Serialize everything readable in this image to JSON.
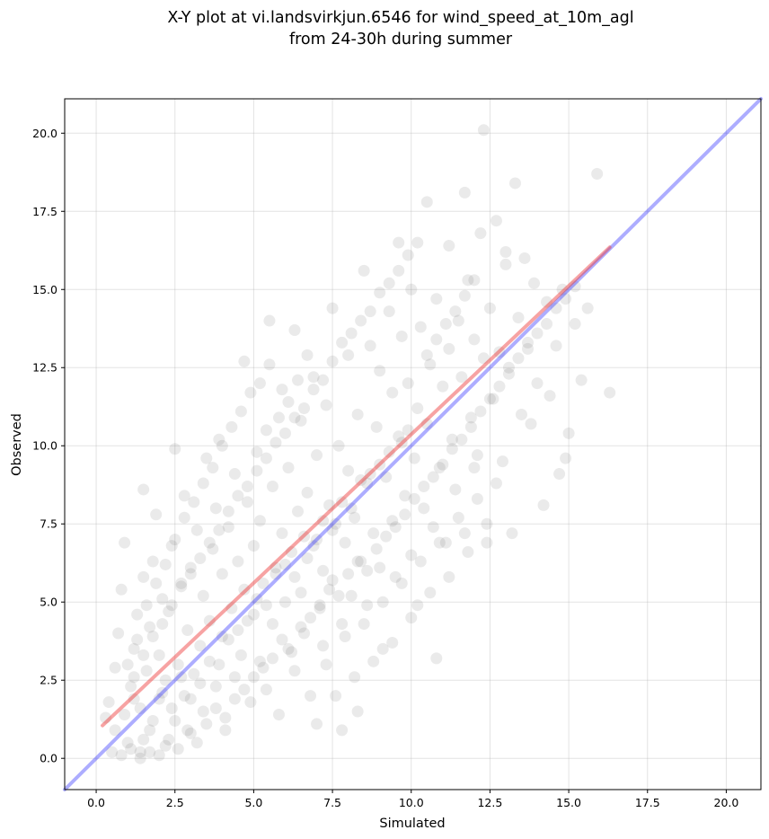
{
  "chart_data": {
    "type": "scatter",
    "title_line1": "X-Y plot at vi.landsvirkjun.6546 for wind_speed_at_10m_agl",
    "title_line2": "from 24-30h during summer",
    "xlabel": "Simulated",
    "ylabel": "Observed",
    "xlim": [
      -1.0,
      21.1
    ],
    "ylim": [
      -1.0,
      21.1
    ],
    "x_ticks": [
      0.0,
      2.5,
      5.0,
      7.5,
      10.0,
      12.5,
      15.0,
      17.5,
      20.0
    ],
    "y_ticks": [
      0.0,
      2.5,
      5.0,
      7.5,
      10.0,
      12.5,
      15.0,
      17.5,
      20.0
    ],
    "x_tick_labels": [
      "0.0",
      "2.5",
      "5.0",
      "7.5",
      "10.0",
      "12.5",
      "15.0",
      "17.5",
      "20.0"
    ],
    "y_tick_labels": [
      "0.0",
      "2.5",
      "5.0",
      "7.5",
      "10.0",
      "12.5",
      "15.0",
      "17.5",
      "20.0"
    ],
    "grid": true,
    "point_color": "#404040",
    "identity_line": {
      "x": [
        -1.0,
        21.1
      ],
      "y": [
        -1.0,
        21.1
      ],
      "color": "#3333ff"
    },
    "fit_line": {
      "x": [
        0.2,
        16.3
      ],
      "y": [
        1.05,
        16.35
      ],
      "color": "#ee3333"
    },
    "points": [
      [
        0.3,
        1.3
      ],
      [
        0.5,
        0.2
      ],
      [
        0.6,
        2.9
      ],
      [
        0.7,
        4.0
      ],
      [
        0.8,
        5.4
      ],
      [
        0.9,
        6.9
      ],
      [
        1.0,
        0.5
      ],
      [
        1.1,
        2.3
      ],
      [
        1.2,
        3.5
      ],
      [
        1.3,
        4.6
      ],
      [
        1.4,
        0.2
      ],
      [
        1.4,
        1.6
      ],
      [
        1.5,
        5.8
      ],
      [
        1.5,
        8.6
      ],
      [
        1.6,
        2.8
      ],
      [
        1.7,
        0.9
      ],
      [
        1.7,
        4.2
      ],
      [
        1.8,
        6.3
      ],
      [
        1.9,
        7.8
      ],
      [
        2.0,
        1.9
      ],
      [
        2.0,
        3.3
      ],
      [
        2.1,
        5.1
      ],
      [
        2.2,
        0.4
      ],
      [
        2.2,
        2.5
      ],
      [
        2.3,
        4.7
      ],
      [
        2.4,
        6.8
      ],
      [
        2.5,
        1.2
      ],
      [
        2.5,
        9.9
      ],
      [
        2.6,
        3.0
      ],
      [
        2.7,
        5.5
      ],
      [
        2.8,
        2.0
      ],
      [
        2.8,
        8.4
      ],
      [
        2.9,
        4.1
      ],
      [
        3.0,
        0.8
      ],
      [
        3.0,
        6.1
      ],
      [
        3.1,
        2.7
      ],
      [
        3.2,
        7.3
      ],
      [
        3.3,
        3.6
      ],
      [
        3.4,
        5.2
      ],
      [
        3.4,
        1.5
      ],
      [
        3.5,
        9.6
      ],
      [
        3.6,
        4.4
      ],
      [
        3.7,
        6.7
      ],
      [
        3.8,
        2.3
      ],
      [
        3.8,
        8.0
      ],
      [
        3.9,
        10.2
      ],
      [
        4.0,
        3.9
      ],
      [
        4.0,
        5.9
      ],
      [
        4.1,
        0.9
      ],
      [
        4.2,
        7.4
      ],
      [
        4.3,
        4.8
      ],
      [
        4.4,
        2.6
      ],
      [
        4.4,
        9.1
      ],
      [
        4.5,
        6.3
      ],
      [
        4.6,
        3.3
      ],
      [
        4.7,
        5.4
      ],
      [
        4.7,
        12.7
      ],
      [
        4.8,
        8.2
      ],
      [
        4.9,
        1.8
      ],
      [
        5.0,
        4.6
      ],
      [
        5.0,
        6.8
      ],
      [
        5.1,
        9.8
      ],
      [
        5.2,
        3.1
      ],
      [
        5.2,
        7.6
      ],
      [
        5.3,
        5.6
      ],
      [
        5.4,
        2.2
      ],
      [
        5.4,
        10.5
      ],
      [
        5.5,
        14.0
      ],
      [
        5.6,
        4.3
      ],
      [
        5.6,
        8.7
      ],
      [
        5.7,
        6.1
      ],
      [
        5.8,
        1.4
      ],
      [
        5.9,
        7.2
      ],
      [
        5.9,
        11.8
      ],
      [
        6.0,
        5.0
      ],
      [
        6.1,
        3.5
      ],
      [
        6.1,
        9.3
      ],
      [
        6.2,
        6.6
      ],
      [
        6.3,
        2.8
      ],
      [
        6.3,
        13.7
      ],
      [
        6.4,
        7.9
      ],
      [
        6.5,
        5.3
      ],
      [
        6.5,
        10.8
      ],
      [
        6.6,
        4.0
      ],
      [
        6.7,
        8.5
      ],
      [
        6.7,
        6.4
      ],
      [
        6.8,
        2.0
      ],
      [
        6.9,
        12.2
      ],
      [
        7.0,
        7.0
      ],
      [
        7.0,
        9.7
      ],
      [
        7.1,
        4.8
      ],
      [
        7.2,
        6.0
      ],
      [
        7.2,
        3.6
      ],
      [
        7.3,
        11.3
      ],
      [
        7.4,
        8.1
      ],
      [
        7.5,
        5.7
      ],
      [
        7.5,
        14.4
      ],
      [
        7.6,
        7.5
      ],
      [
        7.7,
        10.0
      ],
      [
        7.8,
        4.3
      ],
      [
        7.8,
        0.9
      ],
      [
        7.9,
        6.9
      ],
      [
        8.0,
        12.9
      ],
      [
        8.0,
        9.2
      ],
      [
        8.1,
        5.2
      ],
      [
        8.2,
        7.7
      ],
      [
        8.3,
        1.5
      ],
      [
        8.3,
        11.0
      ],
      [
        8.4,
        6.3
      ],
      [
        8.5,
        15.6
      ],
      [
        8.6,
        8.8
      ],
      [
        8.6,
        4.9
      ],
      [
        8.7,
        13.2
      ],
      [
        8.8,
        7.2
      ],
      [
        8.9,
        10.6
      ],
      [
        9.0,
        6.1
      ],
      [
        9.0,
        12.4
      ],
      [
        9.1,
        3.5
      ],
      [
        9.2,
        9.0
      ],
      [
        9.3,
        14.3
      ],
      [
        9.4,
        7.6
      ],
      [
        9.4,
        11.7
      ],
      [
        9.5,
        5.8
      ],
      [
        9.6,
        16.5
      ],
      [
        9.7,
        10.1
      ],
      [
        9.7,
        13.5
      ],
      [
        9.8,
        8.4
      ],
      [
        9.9,
        12.0
      ],
      [
        10.0,
        6.5
      ],
      [
        10.0,
        15.0
      ],
      [
        10.1,
        9.6
      ],
      [
        10.2,
        11.2
      ],
      [
        10.2,
        4.9
      ],
      [
        10.3,
        13.8
      ],
      [
        10.4,
        8.0
      ],
      [
        10.5,
        17.8
      ],
      [
        10.5,
        10.7
      ],
      [
        10.6,
        12.6
      ],
      [
        10.7,
        7.4
      ],
      [
        10.8,
        3.2
      ],
      [
        10.8,
        14.7
      ],
      [
        10.9,
        9.3
      ],
      [
        11.0,
        11.9
      ],
      [
        11.1,
        6.9
      ],
      [
        11.2,
        16.4
      ],
      [
        11.2,
        13.1
      ],
      [
        11.3,
        10.2
      ],
      [
        11.4,
        8.6
      ],
      [
        11.5,
        14.0
      ],
      [
        11.6,
        12.2
      ],
      [
        11.7,
        18.1
      ],
      [
        11.7,
        7.2
      ],
      [
        11.8,
        15.3
      ],
      [
        11.9,
        10.9
      ],
      [
        12.0,
        13.4
      ],
      [
        12.1,
        9.7
      ],
      [
        12.2,
        16.8
      ],
      [
        12.3,
        12.8
      ],
      [
        12.3,
        20.1
      ],
      [
        12.4,
        7.5
      ],
      [
        12.5,
        14.4
      ],
      [
        12.6,
        11.5
      ],
      [
        12.7,
        17.2
      ],
      [
        12.8,
        13.0
      ],
      [
        12.9,
        9.5
      ],
      [
        13.0,
        15.8
      ],
      [
        13.1,
        12.5
      ],
      [
        13.2,
        7.2
      ],
      [
        13.3,
        18.4
      ],
      [
        13.4,
        14.1
      ],
      [
        13.5,
        11.0
      ],
      [
        13.6,
        16.0
      ],
      [
        13.7,
        13.3
      ],
      [
        13.8,
        10.7
      ],
      [
        13.9,
        15.2
      ],
      [
        14.0,
        12.0
      ],
      [
        14.2,
        8.1
      ],
      [
        14.3,
        14.6
      ],
      [
        14.4,
        11.6
      ],
      [
        14.6,
        13.2
      ],
      [
        14.7,
        9.1
      ],
      [
        14.8,
        15.0
      ],
      [
        15.0,
        10.4
      ],
      [
        15.2,
        13.9
      ],
      [
        15.4,
        12.1
      ],
      [
        15.6,
        14.4
      ],
      [
        15.9,
        18.7
      ],
      [
        16.3,
        11.7
      ],
      [
        14.9,
        9.6
      ],
      [
        13.0,
        16.2
      ],
      [
        1.2,
        1.9
      ],
      [
        1.5,
        0.6
      ],
      [
        1.8,
        1.2
      ],
      [
        2.1,
        2.1
      ],
      [
        2.4,
        1.6
      ],
      [
        2.7,
        2.6
      ],
      [
        3.0,
        1.9
      ],
      [
        3.3,
        2.4
      ],
      [
        3.6,
        3.1
      ],
      [
        3.9,
        3.0
      ],
      [
        4.2,
        3.8
      ],
      [
        4.5,
        4.1
      ],
      [
        4.8,
        4.4
      ],
      [
        5.1,
        5.1
      ],
      [
        5.4,
        4.9
      ],
      [
        5.7,
        5.9
      ],
      [
        6.0,
        6.2
      ],
      [
        6.3,
        5.8
      ],
      [
        6.6,
        7.1
      ],
      [
        6.9,
        6.8
      ],
      [
        7.2,
        7.6
      ],
      [
        7.5,
        7.3
      ],
      [
        7.8,
        8.2
      ],
      [
        8.1,
        8.0
      ],
      [
        8.4,
        8.9
      ],
      [
        8.7,
        9.1
      ],
      [
        9.0,
        9.4
      ],
      [
        9.3,
        9.8
      ],
      [
        9.6,
        10.3
      ],
      [
        9.9,
        10.5
      ],
      [
        1.0,
        3.0
      ],
      [
        1.3,
        3.8
      ],
      [
        1.6,
        4.9
      ],
      [
        1.9,
        5.6
      ],
      [
        2.2,
        6.2
      ],
      [
        2.5,
        7.0
      ],
      [
        2.8,
        7.7
      ],
      [
        3.1,
        8.2
      ],
      [
        3.4,
        8.8
      ],
      [
        3.7,
        9.3
      ],
      [
        4.0,
        10.0
      ],
      [
        4.3,
        10.6
      ],
      [
        4.6,
        11.1
      ],
      [
        4.9,
        11.7
      ],
      [
        5.2,
        12.0
      ],
      [
        5.5,
        12.6
      ],
      [
        5.8,
        10.9
      ],
      [
        6.1,
        11.4
      ],
      [
        6.4,
        12.1
      ],
      [
        6.7,
        12.9
      ],
      [
        0.8,
        0.1
      ],
      [
        1.1,
        0.3
      ],
      [
        1.4,
        0.0
      ],
      [
        1.7,
        0.2
      ],
      [
        2.0,
        0.1
      ],
      [
        2.3,
        0.6
      ],
      [
        2.6,
        0.3
      ],
      [
        2.9,
        0.9
      ],
      [
        3.2,
        0.5
      ],
      [
        3.5,
        1.1
      ],
      [
        3.8,
        1.6
      ],
      [
        4.1,
        1.3
      ],
      [
        4.4,
        1.9
      ],
      [
        4.7,
        2.2
      ],
      [
        5.0,
        2.6
      ],
      [
        5.3,
        2.9
      ],
      [
        5.6,
        3.2
      ],
      [
        5.9,
        3.8
      ],
      [
        6.2,
        3.4
      ],
      [
        6.5,
        4.2
      ],
      [
        6.8,
        4.5
      ],
      [
        7.1,
        4.9
      ],
      [
        7.4,
        5.4
      ],
      [
        7.7,
        5.2
      ],
      [
        8.0,
        5.9
      ],
      [
        8.3,
        6.3
      ],
      [
        8.6,
        6.0
      ],
      [
        8.9,
        6.7
      ],
      [
        9.2,
        7.1
      ],
      [
        9.5,
        7.4
      ],
      [
        9.8,
        7.8
      ],
      [
        10.1,
        8.3
      ],
      [
        10.4,
        8.7
      ],
      [
        10.7,
        9.0
      ],
      [
        11.0,
        9.4
      ],
      [
        11.3,
        9.9
      ],
      [
        11.6,
        10.2
      ],
      [
        11.9,
        10.6
      ],
      [
        12.2,
        11.1
      ],
      [
        12.5,
        11.5
      ],
      [
        12.8,
        11.9
      ],
      [
        13.1,
        12.3
      ],
      [
        13.4,
        12.8
      ],
      [
        13.7,
        13.1
      ],
      [
        14.0,
        13.6
      ],
      [
        14.3,
        13.9
      ],
      [
        14.6,
        14.4
      ],
      [
        14.9,
        14.7
      ],
      [
        15.2,
        15.1
      ],
      [
        12.0,
        9.3
      ],
      [
        0.4,
        1.8
      ],
      [
        0.6,
        0.9
      ],
      [
        0.9,
        1.4
      ],
      [
        1.2,
        2.6
      ],
      [
        1.5,
        3.3
      ],
      [
        1.8,
        3.9
      ],
      [
        2.1,
        4.3
      ],
      [
        2.4,
        4.9
      ],
      [
        2.7,
        5.6
      ],
      [
        3.0,
        5.9
      ],
      [
        3.3,
        6.4
      ],
      [
        3.6,
        6.9
      ],
      [
        3.9,
        7.3
      ],
      [
        4.2,
        7.9
      ],
      [
        4.5,
        8.4
      ],
      [
        4.8,
        8.7
      ],
      [
        5.1,
        9.2
      ],
      [
        5.4,
        9.6
      ],
      [
        5.7,
        10.1
      ],
      [
        6.0,
        10.4
      ],
      [
        6.3,
        10.9
      ],
      [
        6.6,
        11.2
      ],
      [
        6.9,
        11.8
      ],
      [
        7.2,
        12.1
      ],
      [
        7.5,
        12.7
      ],
      [
        7.8,
        13.3
      ],
      [
        8.1,
        13.6
      ],
      [
        8.4,
        14.0
      ],
      [
        8.7,
        14.3
      ],
      [
        9.0,
        14.9
      ],
      [
        9.3,
        15.2
      ],
      [
        9.6,
        15.6
      ],
      [
        9.9,
        16.1
      ],
      [
        10.2,
        16.5
      ],
      [
        10.5,
        12.9
      ],
      [
        10.8,
        13.4
      ],
      [
        11.1,
        13.9
      ],
      [
        11.4,
        14.3
      ],
      [
        11.7,
        14.8
      ],
      [
        12.0,
        15.3
      ],
      [
        7.0,
        1.1
      ],
      [
        7.6,
        2.0
      ],
      [
        8.2,
        2.6
      ],
      [
        8.8,
        3.1
      ],
      [
        9.4,
        3.7
      ],
      [
        10.0,
        4.5
      ],
      [
        10.6,
        5.3
      ],
      [
        11.2,
        5.8
      ],
      [
        11.8,
        6.6
      ],
      [
        12.4,
        6.9
      ],
      [
        7.3,
        3.0
      ],
      [
        7.9,
        3.9
      ],
      [
        8.5,
        4.3
      ],
      [
        9.1,
        5.0
      ],
      [
        9.7,
        5.6
      ],
      [
        10.3,
        6.3
      ],
      [
        10.9,
        6.9
      ],
      [
        11.5,
        7.7
      ],
      [
        12.1,
        8.3
      ],
      [
        12.7,
        8.8
      ]
    ]
  }
}
